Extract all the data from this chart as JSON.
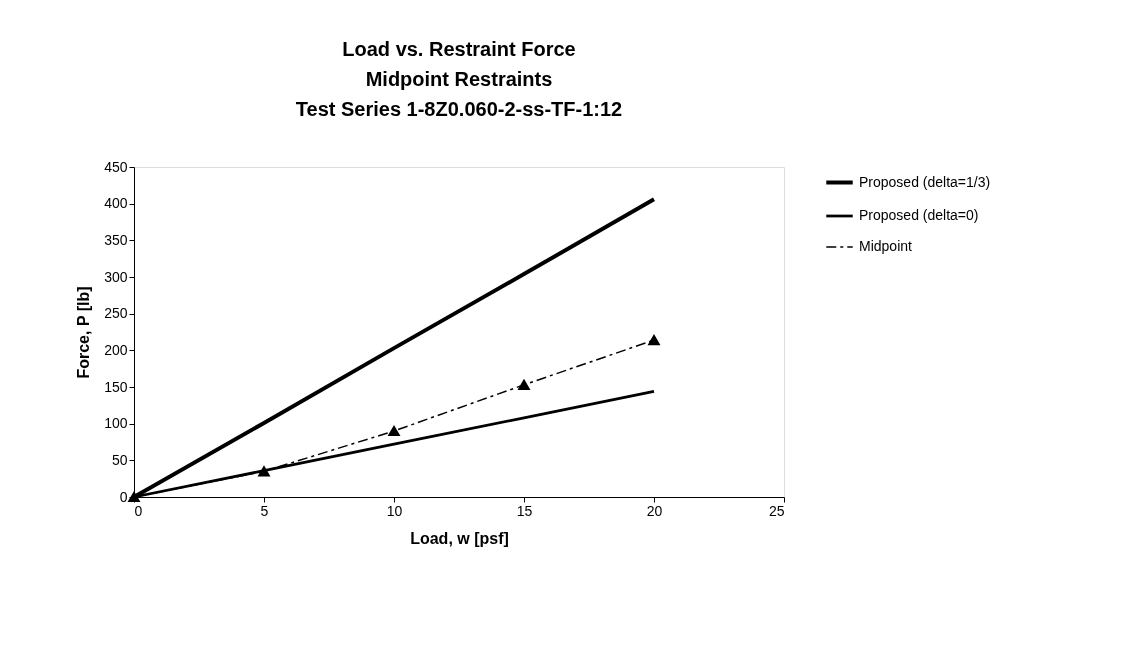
{
  "chart_data": {
    "type": "line",
    "title": [
      "Load vs. Restraint Force",
      "Midpoint Restraints",
      "Test Series 1-8Z0.060-2-ss-TF-1:12"
    ],
    "xlabel": "Load, w [psf]",
    "ylabel": "Force, P [lb]",
    "x": [
      0,
      5,
      10,
      15,
      20
    ],
    "series": [
      {
        "name": "Proposed (delta=1/3)",
        "color": "#000000",
        "values": [
          0,
          101,
          203,
          304,
          406
        ],
        "marker": "none",
        "line_style": "solid"
      },
      {
        "name": "Proposed (delta=0)",
        "color": "#000000",
        "values": [
          0,
          36,
          72,
          108,
          144
        ],
        "marker": "none",
        "line_style": "solid"
      },
      {
        "name": "Midpoint",
        "color": "#000000",
        "values": [
          0,
          35,
          90,
          153,
          214
        ],
        "marker": "triangle",
        "line_style": "dashed"
      }
    ],
    "xlim": [
      0,
      25
    ],
    "xticks": [
      0,
      5,
      10,
      15,
      20,
      25
    ],
    "ylim": [
      0,
      450
    ],
    "yticks": [
      0,
      50,
      100,
      150,
      200,
      250,
      300,
      350,
      400,
      450
    ],
    "grid": false,
    "legend": "right"
  }
}
